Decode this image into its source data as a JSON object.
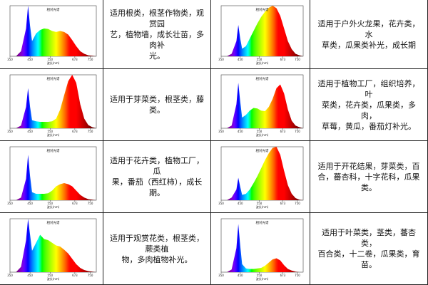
{
  "chart_data": [
    {
      "type": "area",
      "title": "相对光谱",
      "xlabel": "波长(nm)",
      "xticks": [
        "350",
        "450",
        "550",
        "673",
        "750"
      ],
      "xlim": [
        350,
        780
      ],
      "ylim": [
        0,
        1
      ],
      "x": [
        380,
        405,
        430,
        440,
        450,
        460,
        480,
        500,
        520,
        540,
        560,
        580,
        600,
        620,
        640,
        660,
        680,
        700,
        720,
        740,
        760,
        780
      ],
      "values": [
        0,
        0.1,
        0.55,
        1.0,
        0.6,
        0.3,
        0.45,
        0.52,
        0.55,
        0.54,
        0.5,
        0.48,
        0.5,
        0.48,
        0.43,
        0.32,
        0.2,
        0.1,
        0.05,
        0.02,
        0.01,
        0
      ]
    },
    {
      "type": "area",
      "title": "相对光谱",
      "xlabel": "波长(nm)",
      "xticks": [
        "350",
        "450",
        "550",
        "673",
        "750"
      ],
      "xlim": [
        350,
        780
      ],
      "ylim": [
        0,
        1
      ],
      "x": [
        380,
        405,
        430,
        440,
        450,
        460,
        480,
        500,
        520,
        540,
        560,
        580,
        600,
        620,
        640,
        660,
        680,
        700,
        720,
        740,
        760,
        780
      ],
      "values": [
        0,
        0.05,
        0.3,
        0.62,
        0.35,
        0.15,
        0.2,
        0.35,
        0.5,
        0.65,
        0.78,
        0.88,
        0.96,
        1.0,
        0.95,
        0.8,
        0.55,
        0.3,
        0.14,
        0.05,
        0.02,
        0
      ]
    },
    {
      "type": "area",
      "title": "相对光谱",
      "xlabel": "波长(nm)",
      "xticks": [
        "350",
        "450",
        "550",
        "673",
        "750"
      ],
      "xlim": [
        350,
        780
      ],
      "ylim": [
        0,
        1
      ],
      "x": [
        380,
        405,
        430,
        440,
        450,
        460,
        480,
        500,
        520,
        540,
        560,
        580,
        600,
        620,
        640,
        660,
        680,
        700,
        720,
        740,
        760,
        780
      ],
      "values": [
        0,
        0.05,
        0.4,
        0.75,
        0.4,
        0.15,
        0.13,
        0.12,
        0.12,
        0.12,
        0.13,
        0.18,
        0.35,
        0.62,
        0.88,
        1.0,
        0.85,
        0.45,
        0.18,
        0.06,
        0.02,
        0
      ]
    },
    {
      "type": "area",
      "title": "相对光谱",
      "xlabel": "波长(nm)",
      "xticks": [
        "350",
        "450",
        "550",
        "673",
        "750"
      ],
      "xlim": [
        350,
        780
      ],
      "ylim": [
        0,
        1
      ],
      "x": [
        380,
        405,
        430,
        440,
        450,
        460,
        480,
        500,
        520,
        540,
        560,
        580,
        600,
        620,
        640,
        660,
        680,
        700,
        720,
        740,
        760,
        780
      ],
      "values": [
        0,
        0.05,
        0.45,
        0.85,
        0.5,
        0.2,
        0.25,
        0.33,
        0.38,
        0.37,
        0.33,
        0.32,
        0.4,
        0.55,
        0.75,
        0.82,
        0.65,
        0.35,
        0.14,
        0.05,
        0.02,
        0
      ]
    },
    {
      "type": "area",
      "title": "相对光谱",
      "xlabel": "波长(nm)",
      "xticks": [
        "350",
        "450",
        "550",
        "673",
        "750"
      ],
      "xlim": [
        350,
        780
      ],
      "ylim": [
        0,
        1
      ],
      "x": [
        380,
        405,
        430,
        440,
        450,
        460,
        480,
        500,
        520,
        540,
        560,
        580,
        600,
        620,
        640,
        660,
        680,
        700,
        720,
        740,
        760,
        780
      ],
      "values": [
        0,
        0.05,
        0.4,
        0.85,
        0.45,
        0.15,
        0.12,
        0.12,
        0.12,
        0.13,
        0.18,
        0.26,
        0.3,
        0.32,
        0.3,
        0.26,
        0.18,
        0.1,
        0.05,
        0.02,
        0.01,
        0
      ]
    },
    {
      "type": "area",
      "title": "相对光谱",
      "xlabel": "波长(nm)",
      "xticks": [
        "350",
        "450",
        "550",
        "673",
        "750"
      ],
      "xlim": [
        350,
        780
      ],
      "ylim": [
        0,
        1
      ],
      "x": [
        380,
        405,
        430,
        440,
        450,
        460,
        480,
        500,
        520,
        540,
        560,
        580,
        600,
        620,
        640,
        660,
        680,
        700,
        720,
        740,
        760,
        780
      ],
      "values": [
        0,
        0.05,
        0.2,
        0.42,
        0.25,
        0.1,
        0.12,
        0.2,
        0.32,
        0.45,
        0.6,
        0.75,
        0.88,
        0.98,
        1.0,
        0.85,
        0.55,
        0.28,
        0.12,
        0.04,
        0.01,
        0
      ]
    },
    {
      "type": "area",
      "title": "相对光谱",
      "xlabel": "波长(nm)",
      "xticks": [
        "350",
        "450",
        "550",
        "673",
        "750"
      ],
      "xlim": [
        350,
        780
      ],
      "ylim": [
        0,
        1
      ],
      "x": [
        380,
        405,
        430,
        440,
        450,
        460,
        480,
        500,
        520,
        540,
        560,
        580,
        600,
        620,
        640,
        660,
        680,
        700,
        720,
        740,
        760,
        780
      ],
      "values": [
        0,
        0.1,
        0.6,
        1.0,
        0.7,
        0.4,
        0.55,
        0.7,
        0.62,
        0.6,
        0.55,
        0.5,
        0.48,
        0.42,
        0.35,
        0.25,
        0.15,
        0.08,
        0.04,
        0.02,
        0.01,
        0
      ]
    },
    {
      "type": "area",
      "title": "相对光谱",
      "xlabel": "波长(nm)",
      "xticks": [
        "350",
        "450",
        "550",
        "673",
        "750"
      ],
      "xlim": [
        350,
        780
      ],
      "ylim": [
        0,
        1
      ],
      "x": [
        380,
        405,
        430,
        440,
        450,
        460,
        480,
        500,
        520,
        540,
        560,
        580,
        600,
        620,
        640,
        660,
        680,
        700,
        720,
        740,
        760,
        780
      ],
      "values": [
        0,
        0.05,
        0.45,
        0.9,
        0.5,
        0.15,
        0.07,
        0.06,
        0.06,
        0.07,
        0.08,
        0.12,
        0.18,
        0.24,
        0.26,
        0.22,
        0.13,
        0.06,
        0.03,
        0.01,
        0,
        0
      ]
    }
  ],
  "descriptions": [
    "适用根类，根茎作物类，观赏园艺，植物墙，成长壮苗，多肉补光。",
    "适用于户外火龙果，花卉类，水草类，瓜果类补光，成长期",
    "适用于芽菜类，根茎类，藤类。",
    "适用于植物工厂，组织培养，叶菜类，花卉类，瓜果类，多肉，草莓，黄瓜，番茄灯补光。",
    "适用于花卉类，植物工厂，瓜果，番茄（西红柿），成长期。",
    "适用于开花结果，芽菜类，百合，蕃杏科，十字花科，瓜果类。",
    "适用于观赏花类，根茎类，蕨类植物，多肉植物补光。",
    "适用于叶菜类，茎类，蕃杏类，百合类，十二卷，瓜果类，育苗。"
  ],
  "desc_lines": [
    [
      "适用根类，根茎作物类，观赏园",
      "艺，植物墙，成长壮苗，多肉补",
      "光。"
    ],
    [
      "适用于户外火龙果，花卉类，水",
      "草类，瓜果类补光，成长期"
    ],
    [
      "适用于芽菜类，根茎类，藤类。"
    ],
    [
      "适用于植物工厂，组织培养，叶",
      "菜类，花卉类，瓜果类，多肉，",
      "草莓，黄瓜，番茄灯补光。"
    ],
    [
      "适用于花卉类，植物工厂，瓜",
      "果，番茄（西红柿），成长期。"
    ],
    [
      "适用于开花结果，芽菜类，百",
      "合，蕃杏科，十字花科，瓜果",
      "类。"
    ],
    [
      "适用于观赏花类，根茎类，蕨类植",
      "物，多肉植物补光。"
    ],
    [
      "适用于叶菜类，茎类，蕃杏类，",
      "百合类，十二卷，瓜果类，育",
      "苗。"
    ]
  ]
}
